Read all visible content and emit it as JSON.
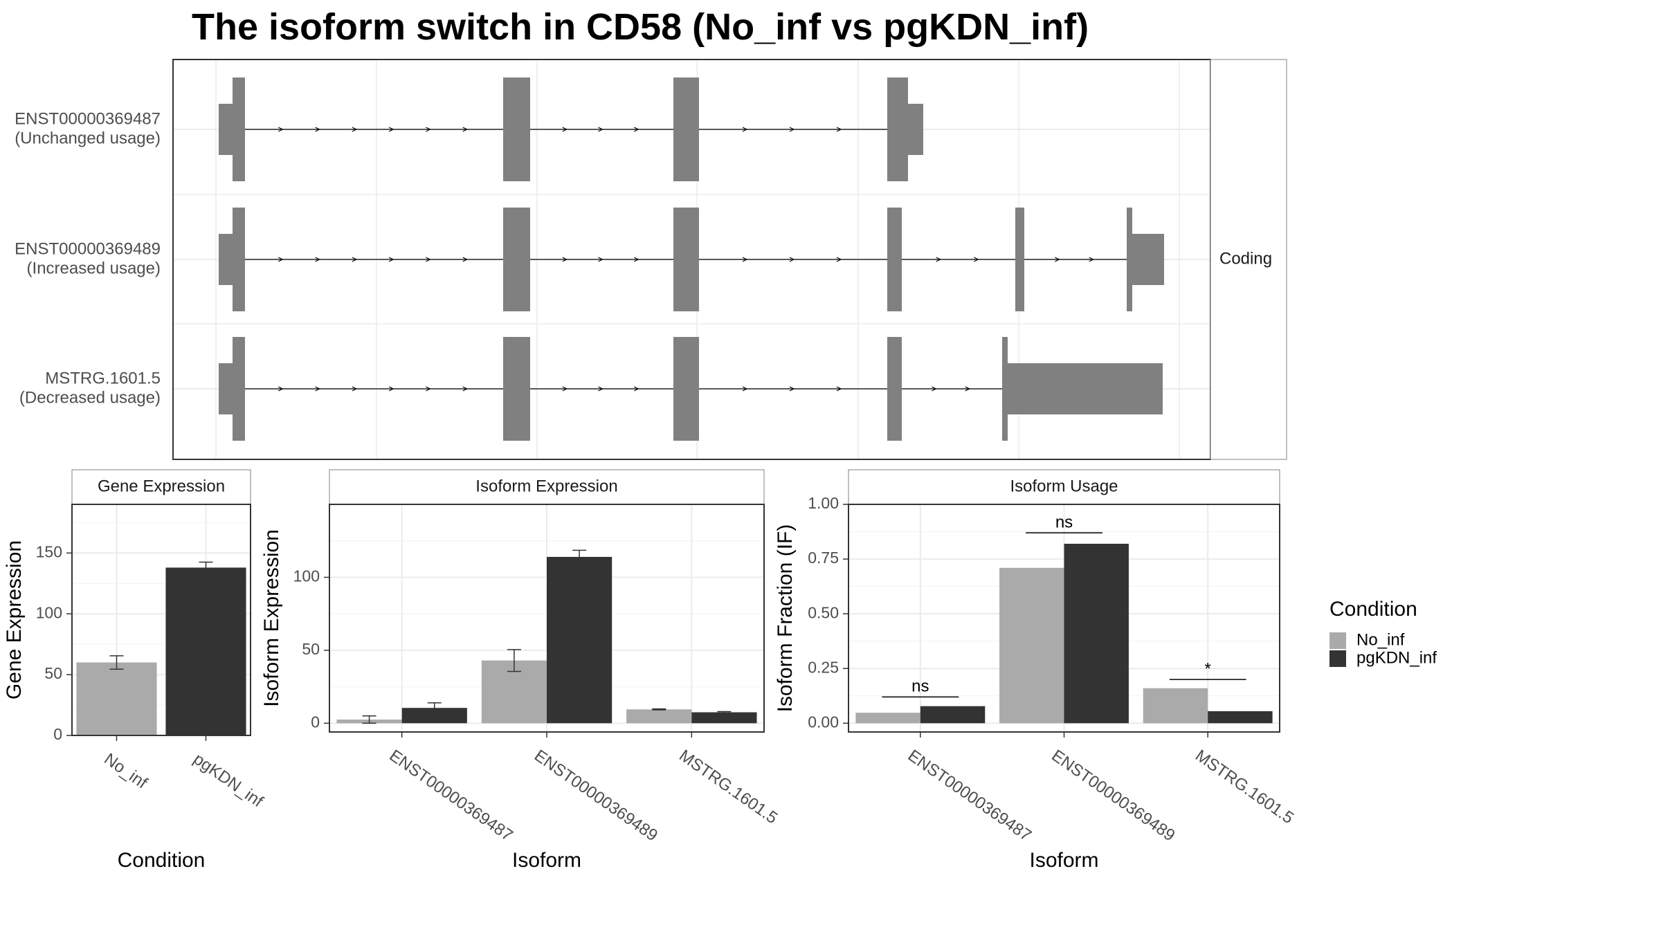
{
  "title": "The isoform switch in CD58 (No_inf vs pgKDN_inf)",
  "colors": {
    "No_inf": "#aaaaaa",
    "pgKDN_inf": "#333333",
    "exon": "#808080",
    "grid": "#ebebeb",
    "frame": "#333333",
    "strip_border": "#808080"
  },
  "chart_data": [
    {
      "type": "gene_structure",
      "strip": "Coding",
      "transcripts": [
        {
          "id": "ENST00000369487",
          "usage": "(Unchanged usage)"
        },
        {
          "id": "ENST00000369489",
          "usage": "(Increased usage)"
        },
        {
          "id": "MSTRG.1601.5",
          "usage": "(Decreased usage)"
        }
      ]
    },
    {
      "type": "bar",
      "title": "Gene Expression",
      "xlabel": "Condition",
      "ylabel": "Gene Expression",
      "ylim": [
        0,
        190
      ],
      "yticks": [
        0,
        50,
        100,
        150
      ],
      "categories": [
        "No_inf",
        "pgKDN_inf"
      ],
      "values": [
        60,
        138
      ],
      "errors": [
        5.5,
        4.5
      ]
    },
    {
      "type": "bar",
      "title": "Isoform Expression",
      "xlabel": "Isoform",
      "ylabel": "Isoform Expression",
      "ylim": [
        -6,
        150
      ],
      "yticks": [
        0,
        50,
        100
      ],
      "categories": [
        "ENST00000369487",
        "ENST00000369489",
        "MSTRG.1601.5"
      ],
      "series": [
        {
          "name": "No_inf",
          "values": [
            2.5,
            43,
            9.5
          ],
          "errors": [
            2.5,
            7.5,
            0.3
          ]
        },
        {
          "name": "pgKDN_inf",
          "values": [
            10.5,
            114,
            7.5
          ],
          "errors": [
            3.5,
            4.5,
            0.5
          ]
        }
      ]
    },
    {
      "type": "bar",
      "title": "Isoform Usage",
      "xlabel": "Isoform",
      "ylabel": "Isoform Fraction (IF)",
      "ylim": [
        -0.04,
        1.0
      ],
      "yticks": [
        "0.00",
        "0.25",
        "0.50",
        "0.75",
        "1.00"
      ],
      "categories": [
        "ENST00000369487",
        "ENST00000369489",
        "MSTRG.1601.5"
      ],
      "series": [
        {
          "name": "No_inf",
          "values": [
            0.048,
            0.71,
            0.16
          ]
        },
        {
          "name": "pgKDN_inf",
          "values": [
            0.078,
            0.82,
            0.055
          ]
        }
      ],
      "significance": [
        {
          "label": "ns",
          "y": 0.12
        },
        {
          "label": "ns",
          "y": 0.87
        },
        {
          "label": "*",
          "y": 0.2
        }
      ]
    }
  ],
  "legend": {
    "title": "Condition",
    "items": [
      "No_inf",
      "pgKDN_inf"
    ],
    "position": "right"
  }
}
